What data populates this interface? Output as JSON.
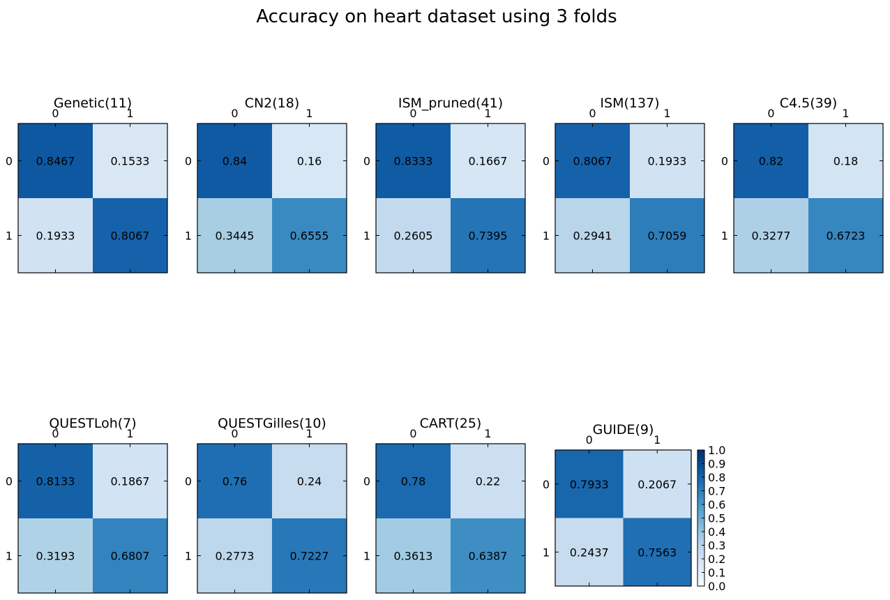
{
  "figure": {
    "title": "Accuracy on heart dataset using 3 folds"
  },
  "chart_data": [
    {
      "type": "heatmap",
      "title": "Genetic(11)",
      "x_ticks": [
        "0",
        "1"
      ],
      "y_ticks": [
        "0",
        "1"
      ],
      "values": [
        [
          0.8467,
          0.1533
        ],
        [
          0.1933,
          0.8067
        ]
      ],
      "labels": [
        [
          "0.8467",
          "0.1533"
        ],
        [
          "0.1933",
          "0.8067"
        ]
      ]
    },
    {
      "type": "heatmap",
      "title": "CN2(18)",
      "x_ticks": [
        "0",
        "1"
      ],
      "y_ticks": [
        "0",
        "1"
      ],
      "values": [
        [
          0.84,
          0.16
        ],
        [
          0.3445,
          0.6555
        ]
      ],
      "labels": [
        [
          "0.84",
          "0.16"
        ],
        [
          "0.3445",
          "0.6555"
        ]
      ]
    },
    {
      "type": "heatmap",
      "title": "ISM_pruned(41)",
      "x_ticks": [
        "0",
        "1"
      ],
      "y_ticks": [
        "0",
        "1"
      ],
      "values": [
        [
          0.8333,
          0.1667
        ],
        [
          0.2605,
          0.7395
        ]
      ],
      "labels": [
        [
          "0.8333",
          "0.1667"
        ],
        [
          "0.2605",
          "0.7395"
        ]
      ]
    },
    {
      "type": "heatmap",
      "title": "ISM(137)",
      "x_ticks": [
        "0",
        "1"
      ],
      "y_ticks": [
        "0",
        "1"
      ],
      "values": [
        [
          0.8067,
          0.1933
        ],
        [
          0.2941,
          0.7059
        ]
      ],
      "labels": [
        [
          "0.8067",
          "0.1933"
        ],
        [
          "0.2941",
          "0.7059"
        ]
      ]
    },
    {
      "type": "heatmap",
      "title": "C4.5(39)",
      "x_ticks": [
        "0",
        "1"
      ],
      "y_ticks": [
        "0",
        "1"
      ],
      "values": [
        [
          0.82,
          0.18
        ],
        [
          0.3277,
          0.6723
        ]
      ],
      "labels": [
        [
          "0.82",
          "0.18"
        ],
        [
          "0.3277",
          "0.6723"
        ]
      ]
    },
    {
      "type": "heatmap",
      "title": "QUESTLoh(7)",
      "x_ticks": [
        "0",
        "1"
      ],
      "y_ticks": [
        "0",
        "1"
      ],
      "values": [
        [
          0.8133,
          0.1867
        ],
        [
          0.3193,
          0.6807
        ]
      ],
      "labels": [
        [
          "0.8133",
          "0.1867"
        ],
        [
          "0.3193",
          "0.6807"
        ]
      ]
    },
    {
      "type": "heatmap",
      "title": "QUESTGilles(10)",
      "x_ticks": [
        "0",
        "1"
      ],
      "y_ticks": [
        "0",
        "1"
      ],
      "values": [
        [
          0.76,
          0.24
        ],
        [
          0.2773,
          0.7227
        ]
      ],
      "labels": [
        [
          "0.76",
          "0.24"
        ],
        [
          "0.2773",
          "0.7227"
        ]
      ]
    },
    {
      "type": "heatmap",
      "title": "CART(25)",
      "x_ticks": [
        "0",
        "1"
      ],
      "y_ticks": [
        "0",
        "1"
      ],
      "values": [
        [
          0.78,
          0.22
        ],
        [
          0.3613,
          0.6387
        ]
      ],
      "labels": [
        [
          "0.78",
          "0.22"
        ],
        [
          "0.3613",
          "0.6387"
        ]
      ]
    },
    {
      "type": "heatmap",
      "title": "GUIDE(9)",
      "x_ticks": [
        "0",
        "1"
      ],
      "y_ticks": [
        "0",
        "1"
      ],
      "values": [
        [
          0.7933,
          0.2067
        ],
        [
          0.2437,
          0.7563
        ]
      ],
      "labels": [
        [
          "0.7933",
          "0.2067"
        ],
        [
          "0.2437",
          "0.7563"
        ]
      ]
    }
  ],
  "colorbar": {
    "colormap": "Blues",
    "range": [
      0,
      1
    ],
    "ticks": [
      "0.0",
      "0.1",
      "0.2",
      "0.3",
      "0.4",
      "0.5",
      "0.6",
      "0.7",
      "0.8",
      "0.9",
      "1.0"
    ]
  }
}
